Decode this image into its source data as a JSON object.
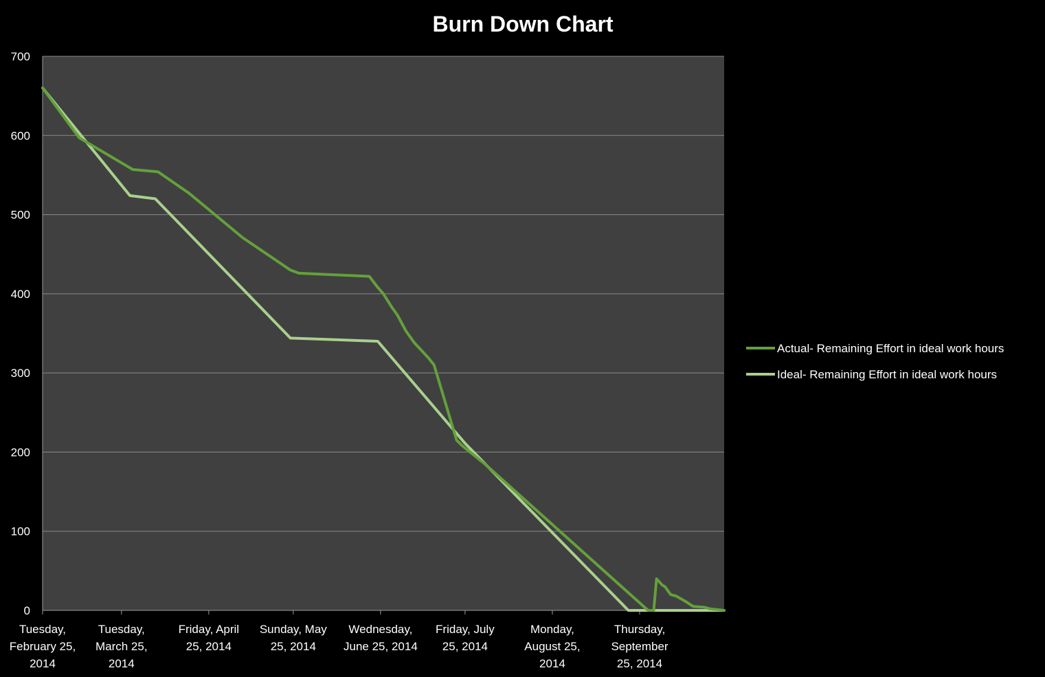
{
  "chart_data": {
    "type": "line",
    "title": "Burn Down Chart",
    "xlabel": "",
    "ylabel": "",
    "ylim": [
      0,
      700
    ],
    "y_ticks": [
      "0",
      "100",
      "200",
      "300",
      "400",
      "500",
      "600",
      "700"
    ],
    "xlim": [
      "2014-02-25",
      "2014-10-25"
    ],
    "x_ticks": [
      {
        "date": "2014-02-25",
        "label": [
          "Tuesday,",
          "February 25,",
          "2014"
        ]
      },
      {
        "date": "2014-03-25",
        "label": [
          "Tuesday,",
          "March 25,",
          "2014"
        ]
      },
      {
        "date": "2014-04-25",
        "label": [
          "Friday, April",
          "25, 2014"
        ]
      },
      {
        "date": "2014-05-25",
        "label": [
          "Sunday, May",
          "25, 2014"
        ]
      },
      {
        "date": "2014-06-25",
        "label": [
          "Wednesday,",
          "June 25, 2014"
        ]
      },
      {
        "date": "2014-07-25",
        "label": [
          "Friday, July",
          "25, 2014"
        ]
      },
      {
        "date": "2014-08-25",
        "label": [
          "Monday,",
          "August 25,",
          "2014"
        ]
      },
      {
        "date": "2014-09-25",
        "label": [
          "Thursday,",
          "September",
          "25, 2014"
        ]
      }
    ],
    "grid": true,
    "legend_position": "right",
    "colors": {
      "background": "#000000",
      "plot_area": "#404040",
      "grid": "#8a8a8a",
      "actual": "#64a03c",
      "ideal": "#a9d08e"
    },
    "series": [
      {
        "name": "Actual- Remaining Effort in ideal work hours",
        "points": [
          [
            "2014-02-25",
            660
          ],
          [
            "2014-03-10",
            597
          ],
          [
            "2014-03-29",
            557
          ],
          [
            "2014-04-07",
            554
          ],
          [
            "2014-04-18",
            527
          ],
          [
            "2014-05-07",
            471
          ],
          [
            "2014-05-24",
            430
          ],
          [
            "2014-05-27",
            426
          ],
          [
            "2014-06-21",
            422
          ],
          [
            "2014-06-24",
            408
          ],
          [
            "2014-06-26",
            400
          ],
          [
            "2014-06-29",
            383
          ],
          [
            "2014-07-01",
            373
          ],
          [
            "2014-07-04",
            353
          ],
          [
            "2014-07-07",
            338
          ],
          [
            "2014-07-12",
            319
          ],
          [
            "2014-07-14",
            310
          ],
          [
            "2014-07-22",
            215
          ],
          [
            "2014-07-24",
            208
          ],
          [
            "2014-08-01",
            185
          ],
          [
            "2014-09-28",
            0
          ],
          [
            "2014-09-30",
            0
          ],
          [
            "2014-10-01",
            40
          ],
          [
            "2014-10-03",
            32
          ],
          [
            "2014-10-04",
            30
          ],
          [
            "2014-10-06",
            20
          ],
          [
            "2014-10-08",
            18
          ],
          [
            "2014-10-11",
            12
          ],
          [
            "2014-10-14",
            5
          ],
          [
            "2014-10-18",
            4
          ],
          [
            "2014-10-20",
            2
          ],
          [
            "2014-10-25",
            0
          ]
        ]
      },
      {
        "name": "Ideal- Remaining Effort in ideal work hours",
        "points": [
          [
            "2014-02-25",
            660
          ],
          [
            "2014-03-28",
            524
          ],
          [
            "2014-04-06",
            520
          ],
          [
            "2014-05-24",
            344
          ],
          [
            "2014-06-24",
            340
          ],
          [
            "2014-07-25",
            211
          ],
          [
            "2014-09-21",
            0
          ],
          [
            "2014-10-25",
            0
          ]
        ]
      }
    ]
  }
}
